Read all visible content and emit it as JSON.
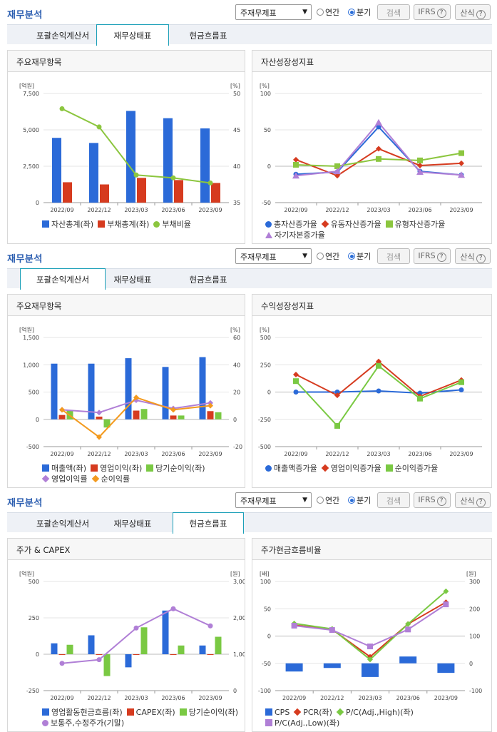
{
  "sections": [
    {
      "title": "재무분석",
      "select_value": "주재무제표",
      "radio_annual": "연간",
      "radio_quarter": "분기",
      "search_label": "검색",
      "ifrs_label": "IFRS",
      "formula_label": "산식",
      "tabs": [
        "포괄손익계산서",
        "재무상태표",
        "현금흐름표"
      ],
      "active_tab": 1,
      "left_title": "주요재무항목",
      "right_title": "자산성장성지표"
    },
    {
      "title": "재무분석",
      "select_value": "주재무제표",
      "radio_annual": "연간",
      "radio_quarter": "분기",
      "search_label": "검색",
      "ifrs_label": "IFRS",
      "formula_label": "산식",
      "tabs": [
        "포괄손익계산서",
        "재무상태표",
        "현금흐름표"
      ],
      "active_tab": 0,
      "left_title": "주요재무항목",
      "right_title": "수익성장성지표"
    },
    {
      "title": "재무분석",
      "select_value": "주재무제표",
      "radio_annual": "연간",
      "radio_quarter": "분기",
      "search_label": "검색",
      "ifrs_label": "IFRS",
      "formula_label": "산식",
      "tabs": [
        "포괄손익계산서",
        "재무상태표",
        "현금흐름표"
      ],
      "active_tab": 2,
      "left_title": "주가 & CAPEX",
      "right_title": "주가현금흐름비율"
    }
  ],
  "colors": {
    "blue": "#2b6ad8",
    "red": "#d63b1f",
    "green": "#8cc63f",
    "lime": "#7ac943",
    "purple": "#b07fd6",
    "orange": "#f39a1e"
  },
  "chart_data": [
    {
      "id": "c1",
      "type": "bar",
      "categories": [
        "2022/09",
        "2022/12",
        "2023/03",
        "2023/06",
        "2023/09"
      ],
      "yleft": {
        "label": "[억원]",
        "min": 0,
        "max": 7500,
        "ticks": [
          "0",
          "2,500",
          "5,000",
          "7,500"
        ],
        "tickvals": [
          0,
          2500,
          5000,
          7500
        ]
      },
      "yright": {
        "label": "[%]",
        "min": 35,
        "max": 50,
        "ticks": [
          "35",
          "40",
          "45",
          "50"
        ],
        "tickvals": [
          35,
          40,
          45,
          50
        ]
      },
      "bars": [
        {
          "name": "자산총계(좌)",
          "color": "#2b6ad8",
          "values": [
            4450,
            4100,
            6300,
            5800,
            5100
          ]
        },
        {
          "name": "부채총계(좌)",
          "color": "#d63b1f",
          "values": [
            1400,
            1250,
            1700,
            1550,
            1350
          ]
        }
      ],
      "lines": [
        {
          "name": "부채비율",
          "color": "#8cc63f",
          "axis": "right",
          "values": [
            47.9,
            45.4,
            38.8,
            38.4,
            37.7
          ]
        }
      ]
    },
    {
      "id": "c2",
      "type": "line",
      "categories": [
        "2022/09",
        "2022/12",
        "2023/03",
        "2023/06",
        "2023/09"
      ],
      "yleft": {
        "label": "[%]",
        "min": -50,
        "max": 100,
        "ticks": [
          "-50",
          "0",
          "50",
          "100"
        ],
        "tickvals": [
          -50,
          0,
          50,
          100
        ]
      },
      "lines": [
        {
          "name": "총자산증가율",
          "color": "#2b6ad8",
          "marker": "circle",
          "values": [
            -11,
            -8,
            54,
            -7,
            -12
          ]
        },
        {
          "name": "유동자산증가율",
          "color": "#d63b1f",
          "marker": "diamond",
          "values": [
            9,
            -13,
            24,
            1,
            4
          ]
        },
        {
          "name": "유형자산증가율",
          "color": "#8cc63f",
          "marker": "square",
          "values": [
            2,
            0,
            10,
            8,
            18
          ]
        },
        {
          "name": "자기자본증가율",
          "color": "#b07fd6",
          "marker": "triangle",
          "values": [
            -13,
            -7,
            60,
            -8,
            -12
          ]
        }
      ]
    },
    {
      "id": "c3",
      "type": "bar",
      "categories": [
        "2022/09",
        "2022/12",
        "2023/03",
        "2023/06",
        "2023/09"
      ],
      "yleft": {
        "label": "[억원]",
        "min": -500,
        "max": 1500,
        "ticks": [
          "-500",
          "0",
          "500",
          "1,000",
          "1,500"
        ],
        "tickvals": [
          -500,
          0,
          500,
          1000,
          1500
        ]
      },
      "yright": {
        "label": "[%]",
        "min": -20,
        "max": 60,
        "ticks": [
          "-20",
          "0",
          "20",
          "40",
          "60"
        ],
        "tickvals": [
          -20,
          0,
          20,
          40,
          60
        ]
      },
      "bars": [
        {
          "name": "매출액(좌)",
          "color": "#2b6ad8",
          "values": [
            1020,
            1020,
            1120,
            960,
            1140
          ]
        },
        {
          "name": "영업이익(좌)",
          "color": "#d63b1f",
          "values": [
            80,
            50,
            160,
            70,
            150
          ]
        },
        {
          "name": "당기순이익(좌)",
          "color": "#7ac943",
          "values": [
            160,
            -150,
            190,
            70,
            130
          ]
        }
      ],
      "lines": [
        {
          "name": "영업이익률",
          "color": "#b07fd6",
          "axis": "right",
          "marker": "diamond",
          "values": [
            7,
            5,
            14,
            8,
            12
          ]
        },
        {
          "name": "순이익률",
          "color": "#f39a1e",
          "axis": "right",
          "marker": "diamond",
          "values": [
            7,
            -13,
            16,
            7,
            10
          ]
        }
      ]
    },
    {
      "id": "c4",
      "type": "line",
      "categories": [
        "2022/09",
        "2022/12",
        "2023/03",
        "2023/06",
        "2023/09"
      ],
      "yleft": {
        "label": "[%]",
        "min": -500,
        "max": 500,
        "ticks": [
          "-500",
          "-250",
          "0",
          "250",
          "500"
        ],
        "tickvals": [
          -500,
          -250,
          0,
          250,
          500
        ]
      },
      "lines": [
        {
          "name": "매출액증가율",
          "color": "#2b6ad8",
          "marker": "circle",
          "values": [
            0,
            0,
            10,
            -10,
            20
          ]
        },
        {
          "name": "영업이익증가율",
          "color": "#d63b1f",
          "marker": "diamond",
          "values": [
            160,
            -30,
            280,
            -40,
            110
          ]
        },
        {
          "name": "순이익증가율",
          "color": "#7ac943",
          "marker": "square",
          "values": [
            100,
            -310,
            240,
            -60,
            90
          ]
        }
      ]
    },
    {
      "id": "c5",
      "type": "bar",
      "categories": [
        "2022/09",
        "2022/12",
        "2023/03",
        "2023/06",
        "2023/09"
      ],
      "yleft": {
        "label": "[억원]",
        "min": -250,
        "max": 500,
        "ticks": [
          "-250",
          "0",
          "250",
          "500"
        ],
        "tickvals": [
          -250,
          0,
          250,
          500
        ]
      },
      "yright": {
        "label": "[원]",
        "min": 0,
        "max": 3000,
        "ticks": [
          "0",
          "1,000",
          "2,000",
          "3,000"
        ],
        "tickvals": [
          0,
          1000,
          2000,
          3000
        ]
      },
      "bars": [
        {
          "name": "영업활동현금흐름(좌)",
          "color": "#2b6ad8",
          "values": [
            75,
            130,
            -90,
            300,
            60
          ]
        },
        {
          "name": "CAPEX(좌)",
          "color": "#d63b1f",
          "values": [
            -3,
            -3,
            -3,
            -3,
            -3
          ]
        },
        {
          "name": "당기순이익(좌)",
          "color": "#7ac943",
          "values": [
            65,
            -150,
            185,
            60,
            120
          ]
        }
      ],
      "lines": [
        {
          "name": "보통주,수정주가(기말)",
          "color": "#b07fd6",
          "axis": "right",
          "marker": "circle",
          "values": [
            750,
            850,
            1720,
            2250,
            1780
          ]
        }
      ]
    },
    {
      "id": "c6",
      "type": "bar",
      "categories": [
        "2022/09",
        "2022/12",
        "2023/03",
        "2023/06",
        "2023/09"
      ],
      "yleft": {
        "label": "[배]",
        "min": -100,
        "max": 100,
        "ticks": [
          "-100",
          "-50",
          "0",
          "50",
          "100"
        ],
        "tickvals": [
          -100,
          -50,
          0,
          50,
          100
        ]
      },
      "yright": {
        "label": "[원]",
        "min": -100,
        "max": 300,
        "ticks": [
          "-100",
          "0",
          "100",
          "200",
          "300"
        ],
        "tickvals": [
          -100,
          0,
          100,
          200,
          300
        ]
      },
      "bars": [
        {
          "name": "CPS",
          "color": "#2b6ad8",
          "axis": "right",
          "values": [
            -30,
            -17,
            -50,
            25,
            -35
          ]
        }
      ],
      "lines": [
        {
          "name": "PCR(좌)",
          "color": "#d63b1f",
          "axis": "left",
          "marker": "diamond",
          "values": [
            20,
            12,
            -38,
            22,
            62
          ]
        },
        {
          "name": "P/C(Adj.,High)(좌)",
          "color": "#7ac943",
          "axis": "left",
          "marker": "diamond",
          "values": [
            23,
            13,
            -43,
            22,
            82
          ]
        },
        {
          "name": "P/C(Adj.,Low)(좌)",
          "color": "#b07fd6",
          "axis": "left",
          "marker": "square",
          "values": [
            19,
            11,
            -19,
            12,
            58
          ]
        }
      ]
    }
  ]
}
